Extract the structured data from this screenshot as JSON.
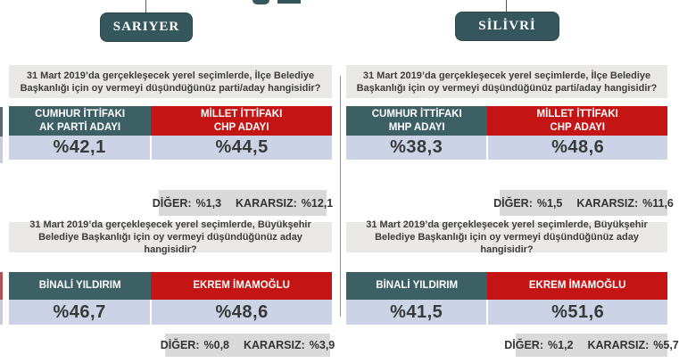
{
  "colors": {
    "teal": "#3d6065",
    "red": "#c41414",
    "badge": "#35565c",
    "value_bg": "#ccd3e6",
    "question_bg": "#e9e8e6",
    "other_bg": "#d9d9d9",
    "divider": "#8193ab",
    "text_dark": "#3d3d3d"
  },
  "panels": [
    {
      "title": "SARIYER",
      "question1": "31 Mart 2019’da gerçekleşecek yerel seçimlerde, İlçe Belediye Başkanlığı için oy vermeyi düşündüğünüz parti/aday hangisidir?",
      "table1": {
        "left": {
          "line1": "CUMHUR İTTİFAKI",
          "line2": "AK PARTİ ADAYI",
          "value": "%42,1"
        },
        "right": {
          "line1": "MİLLET İTTİFAKI",
          "line2": "CHP ADAYI",
          "value": "%44,5"
        }
      },
      "other1": {
        "diger_label": "DİĞER:",
        "diger_value": "%1,3",
        "kararsiz_label": "KARARSIZ:",
        "kararsiz_value": "%12,1"
      },
      "question2": "31 Mart 2019’da gerçekleşecek yerel seçimlerde, Büyükşehir Belediye Başkanlığı için oy vermeyi düşündüğünüz aday hangisidir?",
      "table2": {
        "left": {
          "name": "BİNALİ YILDIRIM",
          "value": "%46,7"
        },
        "right": {
          "name": "EKREM İMAMOĞLU",
          "value": "%48,6"
        }
      },
      "other2": {
        "diger_label": "DİĞER:",
        "diger_value": "%0,8",
        "kararsiz_label": "KARARSIZ:",
        "kararsiz_value": "%3,9"
      }
    },
    {
      "title": "SİLİVRİ",
      "question1": "31 Mart 2019’da gerçekleşecek yerel seçimlerde, İlçe Belediye Başkanlığı için oy vermeyi düşündüğünüz parti/aday hangisidir?",
      "table1": {
        "left": {
          "line1": "CUMHUR İTTİFAKI",
          "line2": "MHP ADAYI",
          "value": "%38,3"
        },
        "right": {
          "line1": "MİLLET İTTİFAKI",
          "line2": "CHP ADAYI",
          "value": "%48,6"
        }
      },
      "other1": {
        "diger_label": "DİĞER:",
        "diger_value": "%1,5",
        "kararsiz_label": "KARARSIZ:",
        "kararsiz_value": "%11,6"
      },
      "question2": "31 Mart 2019’da gerçekleşecek yerel seçimlerde, Büyükşehir Belediye Başkanlığı için oy vermeyi düşündüğünüz aday hangisidir?",
      "table2": {
        "left": {
          "name": "BİNALİ YILDIRIM",
          "value": "%41,5"
        },
        "right": {
          "name": "EKREM İMAMOĞLU",
          "value": "%51,6"
        }
      },
      "other2": {
        "diger_label": "DİĞER:",
        "diger_value": "%1,2",
        "kararsiz_label": "KARARSIZ:",
        "kararsiz_value": "%5,7"
      }
    }
  ],
  "chart_data": [
    {
      "type": "table",
      "title": "SARIYER",
      "questions": [
        {
          "question": "31 Mart 2019’da gerçekleşecek yerel seçimlerde, İlçe Belediye Başkanlığı için oy vermeyi düşündüğünüz parti/aday hangisidir?",
          "categories": [
            "CUMHUR İTTİFAKI AK PARTİ ADAYI",
            "MİLLET İTTİFAKI CHP ADAYI",
            "DİĞER",
            "KARARSIZ"
          ],
          "values": [
            42.1,
            44.5,
            1.3,
            12.1
          ]
        },
        {
          "question": "31 Mart 2019’da gerçekleşecek yerel seçimlerde, Büyükşehir Belediye Başkanlığı için oy vermeyi düşündüğünüz aday hangisidir?",
          "categories": [
            "BİNALİ YILDIRIM",
            "EKREM İMAMOĞLU",
            "DİĞER",
            "KARARSIZ"
          ],
          "values": [
            46.7,
            48.6,
            0.8,
            3.9
          ]
        }
      ]
    },
    {
      "type": "table",
      "title": "SİLİVRİ",
      "questions": [
        {
          "question": "31 Mart 2019’da gerçekleşecek yerel seçimlerde, İlçe Belediye Başkanlığı için oy vermeyi düşündüğünüz parti/aday hangisidir?",
          "categories": [
            "CUMHUR İTTİFAKI MHP ADAYI",
            "MİLLET İTTİFAKI CHP ADAYI",
            "DİĞER",
            "KARARSIZ"
          ],
          "values": [
            38.3,
            48.6,
            1.5,
            11.6
          ]
        },
        {
          "question": "31 Mart 2019’da gerçekleşecek yerel seçimlerde, Büyükşehir Belediye Başkanlığı için oy vermeyi düşündüğünüz aday hangisidir?",
          "categories": [
            "BİNALİ YILDIRIM",
            "EKREM İMAMOĞLU",
            "DİĞER",
            "KARARSIZ"
          ],
          "values": [
            41.5,
            51.6,
            1.2,
            5.7
          ]
        }
      ]
    }
  ]
}
